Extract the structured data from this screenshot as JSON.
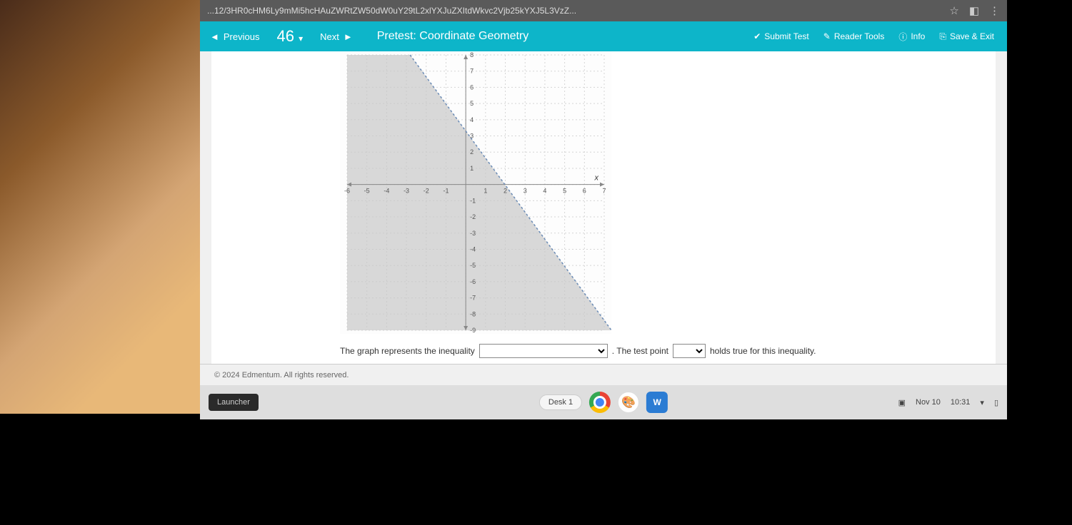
{
  "browser": {
    "url": "...12/3HR0cHM6Ly9mMi5hcHAuZWRtZW50dW0uY29tL2xlYXJuZXItdWkvc2Vjb25kYXJ5L3VzZ...",
    "icons": {
      "star": "☆",
      "ext": "◧",
      "menu": "⋮"
    }
  },
  "header": {
    "previous": "Previous",
    "next": "Next",
    "question_number": "46",
    "title": "Pretest: Coordinate Geometry",
    "submit": "Submit Test",
    "reader": "Reader Tools",
    "info": "Info",
    "save": "Save & Exit"
  },
  "chart": {
    "type": "inequality-graph",
    "x_range": [
      -6,
      7
    ],
    "y_range": [
      -9,
      8
    ],
    "x_ticks": [
      -6,
      -5,
      -4,
      -3,
      -2,
      -1,
      1,
      2,
      3,
      4,
      5,
      6,
      7
    ],
    "y_ticks": [
      8,
      7,
      6,
      5,
      4,
      3,
      2,
      1,
      -1,
      -2,
      -3,
      -4,
      -5,
      -6,
      -7,
      -8,
      -9
    ],
    "line": {
      "slope": -1.67,
      "intercept": 3.3,
      "dashed": true,
      "color": "#6a8bb5"
    },
    "shade_side": "below-left",
    "shade_color": "#c8c8c8",
    "grid_color": "#d5d5d5",
    "axis_color": "#888",
    "background_color": "#fdfdfd",
    "x_label": "x"
  },
  "question": {
    "part1": "The graph represents the inequality",
    "part2": ". The test point",
    "part3": "holds true for this inequality.",
    "dropdown1_value": "",
    "dropdown2_value": ""
  },
  "footer": {
    "copyright": "© 2024 Edmentum. All rights reserved."
  },
  "taskbar": {
    "launcher": "Launcher",
    "desk": "Desk 1",
    "date": "Nov 10",
    "time": "10:31"
  }
}
